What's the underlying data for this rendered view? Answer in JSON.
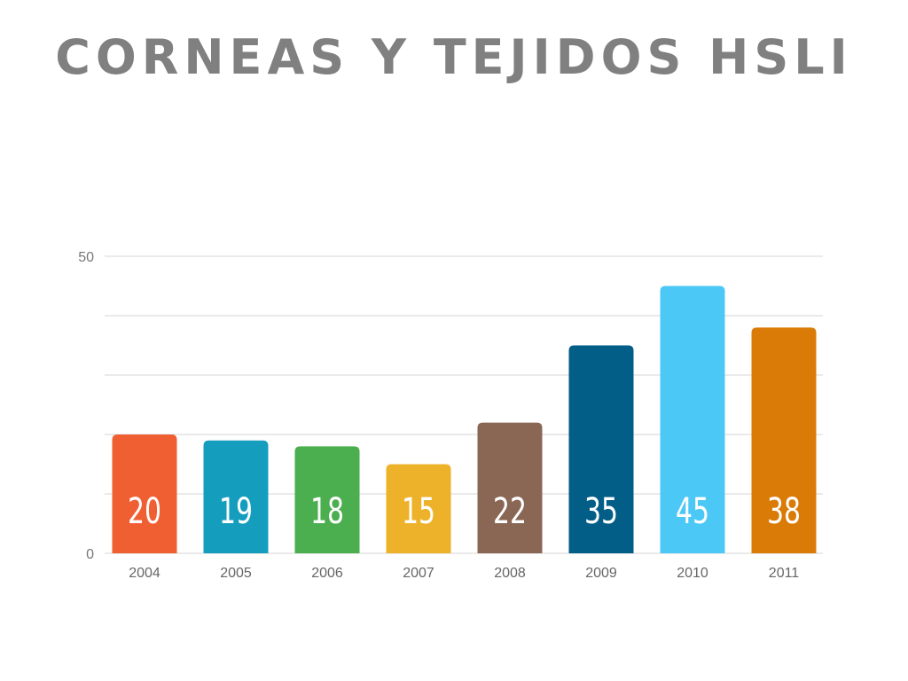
{
  "header": {
    "title": "CORNEAS Y TEJIDOS HSLI"
  },
  "chart_data": {
    "type": "bar",
    "title": "CORNEAS Y TEJIDOS HSLI",
    "xlabel": "",
    "ylabel": "",
    "categories": [
      "2004",
      "2005",
      "2006",
      "2007",
      "2008",
      "2009",
      "2010",
      "2011"
    ],
    "values": [
      20,
      19,
      18,
      15,
      22,
      35,
      45,
      38
    ],
    "value_labels": [
      "20",
      "19",
      "18",
      "15",
      "22",
      "35",
      "45",
      "38"
    ],
    "colors": [
      "#F05F32",
      "#159DBD",
      "#4BAE4F",
      "#EDB22A",
      "#8A6755",
      "#035E87",
      "#4BC8F5",
      "#DB7B07"
    ],
    "ylim": [
      0,
      50
    ],
    "y_ticks": [
      0,
      50
    ],
    "y_tick_labels": [
      "0",
      "50"
    ],
    "gridlines": [
      0,
      10,
      20,
      30,
      40,
      50
    ],
    "grid": true,
    "legend": "none"
  }
}
